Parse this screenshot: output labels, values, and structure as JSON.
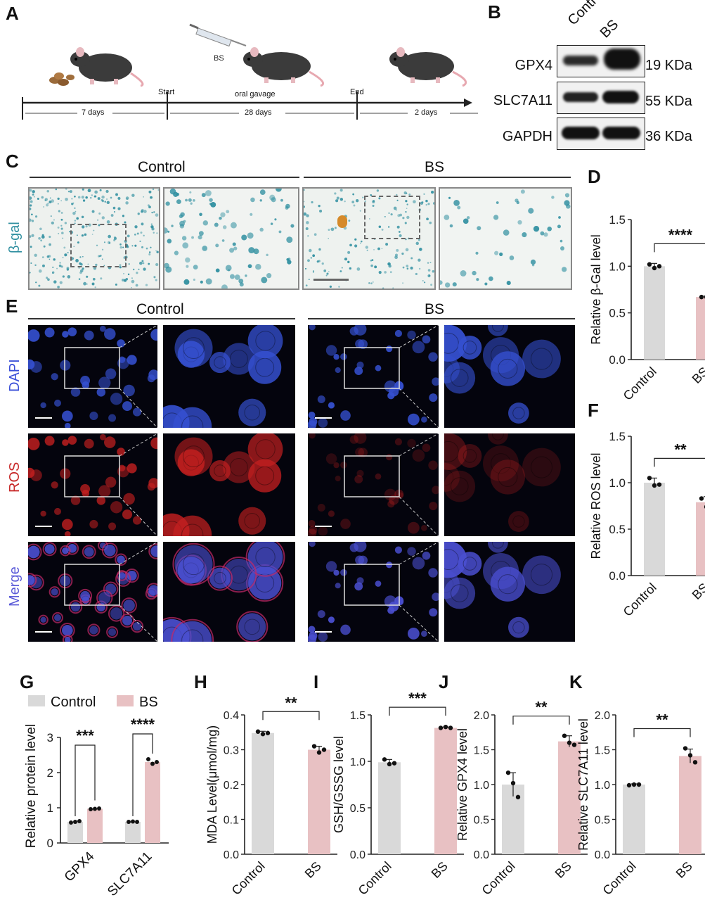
{
  "panels": {
    "A": "A",
    "B": "B",
    "C": "C",
    "D": "D",
    "E": "E",
    "F": "F",
    "G": "G",
    "H": "H",
    "I": "I",
    "J": "J",
    "K": "K"
  },
  "timeline": {
    "drug": "BS",
    "start": "Start",
    "gavage": "oral gavage",
    "end": "End",
    "phase1": "7 days",
    "phase2": "28 days",
    "phase3": "2 days"
  },
  "blot": {
    "lanes": [
      "Control",
      "BS"
    ],
    "rows": [
      {
        "protein": "GPX4",
        "size": "19 KDa"
      },
      {
        "protein": "SLC7A11",
        "size": "55 KDa"
      },
      {
        "protein": "GAPDH",
        "size": "36 KDa"
      }
    ]
  },
  "panelC": {
    "group1": "Control",
    "group2": "BS",
    "stain": "β-gal"
  },
  "panelE": {
    "group1": "Control",
    "group2": "BS",
    "rows": [
      "DAPI",
      "ROS",
      "Merge"
    ]
  },
  "colors": {
    "control": "#d9d9d9",
    "bs": "#e8c1c3",
    "dapi": "#3a4fd8",
    "ros": "#d42a2a",
    "bgal": "#2f8fa0"
  },
  "chart_data": [
    {
      "panel": "D",
      "type": "bar",
      "categories": [
        "Control",
        "BS"
      ],
      "values": [
        1.0,
        0.67
      ],
      "errors": [
        0.03,
        0.01
      ],
      "points": [
        [
          1.02,
          0.98,
          1.0
        ],
        [
          0.67,
          0.67,
          0.68
        ]
      ],
      "ylabel": "Relative β-Gal level",
      "ylim": [
        0,
        1.5
      ],
      "yticks": [
        "0.0",
        "0.5",
        "1.0",
        "1.5"
      ],
      "sig": "****"
    },
    {
      "panel": "F",
      "type": "bar",
      "categories": [
        "Control",
        "BS"
      ],
      "values": [
        1.0,
        0.79
      ],
      "errors": [
        0.05,
        0.06
      ],
      "points": [
        [
          1.05,
          0.97,
          0.98
        ],
        [
          0.83,
          0.74,
          0.8
        ]
      ],
      "ylabel": "Relative ROS level",
      "ylim": [
        0,
        1.5
      ],
      "yticks": [
        "0.0",
        "0.5",
        "1.0",
        "1.5"
      ],
      "sig": "**"
    },
    {
      "panel": "G",
      "type": "bar",
      "categories": [
        "GPX4",
        "SLC7A11"
      ],
      "series": [
        {
          "name": "Control",
          "values": [
            0.6,
            0.6
          ],
          "points": [
            [
              0.58,
              0.6,
              0.62
            ],
            [
              0.6,
              0.61,
              0.6
            ]
          ]
        },
        {
          "name": "BS",
          "values": [
            0.97,
            2.3
          ],
          "points": [
            [
              0.96,
              0.97,
              0.98
            ],
            [
              2.38,
              2.25,
              2.3
            ]
          ]
        }
      ],
      "ylabel": "Relative protein level",
      "ylim": [
        0,
        3
      ],
      "yticks": [
        "0",
        "1",
        "2",
        "3"
      ],
      "sig": [
        "***",
        "****"
      ]
    },
    {
      "panel": "H",
      "type": "bar",
      "categories": [
        "Control",
        "BS"
      ],
      "values": [
        0.348,
        0.3
      ],
      "errors": [
        0.005,
        0.01
      ],
      "points": [
        [
          0.352,
          0.345,
          0.348
        ],
        [
          0.31,
          0.292,
          0.3
        ]
      ],
      "ylabel": "MDA Level(μmol/mg)",
      "ylim": [
        0,
        0.4
      ],
      "yticks": [
        "0.0",
        "0.1",
        "0.2",
        "0.3",
        "0.4"
      ],
      "sig": "**"
    },
    {
      "panel": "I",
      "type": "bar",
      "categories": [
        "Control",
        "BS"
      ],
      "values": [
        0.99,
        1.36
      ],
      "errors": [
        0.03,
        0.01
      ],
      "points": [
        [
          1.02,
          0.97,
          0.98
        ],
        [
          1.36,
          1.37,
          1.36
        ]
      ],
      "ylabel": "GSH/GSSG level",
      "ylim": [
        0,
        1.5
      ],
      "yticks": [
        "0.0",
        "0.5",
        "1.0",
        "1.5"
      ],
      "sig": "***"
    },
    {
      "panel": "J",
      "type": "bar",
      "categories": [
        "Control",
        "BS"
      ],
      "values": [
        1.0,
        1.62
      ],
      "errors": [
        0.17,
        0.08
      ],
      "points": [
        [
          1.17,
          1.02,
          0.82
        ],
        [
          1.7,
          1.6,
          1.57
        ]
      ],
      "ylabel": "Relative GPX4 level",
      "ylim": [
        0,
        2.0
      ],
      "yticks": [
        "0.0",
        "0.5",
        "1.0",
        "1.5",
        "2.0"
      ],
      "sig": "**"
    },
    {
      "panel": "K",
      "type": "bar",
      "categories": [
        "Control",
        "BS"
      ],
      "values": [
        1.0,
        1.41
      ],
      "errors": [
        0.01,
        0.1
      ],
      "points": [
        [
          0.99,
          1.0,
          1.0
        ],
        [
          1.52,
          1.42,
          1.32
        ]
      ],
      "ylabel": "Relative SLC7A11 level",
      "ylim": [
        0,
        2.0
      ],
      "yticks": [
        "0.0",
        "0.5",
        "1.0",
        "1.5",
        "2.0"
      ],
      "sig": "**"
    }
  ]
}
